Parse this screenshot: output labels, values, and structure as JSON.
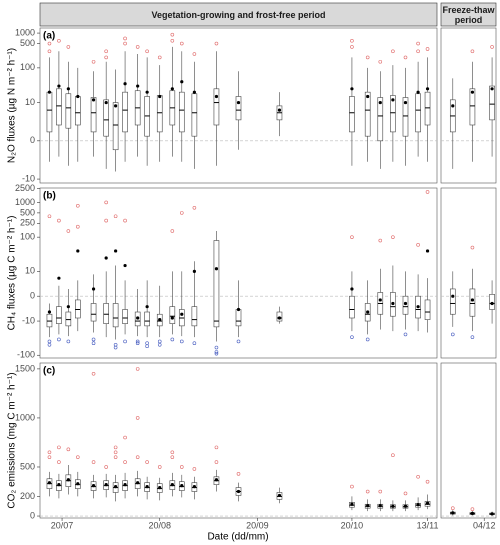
{
  "chart_data": [
    {
      "type": "boxplot",
      "tag": "(a)",
      "facets": [
        "Vegetation-growing and frost-free period",
        "Freeze-thaw period"
      ],
      "xlim": [
        [
          "13/07",
          "16/11"
        ],
        [
          "23/11",
          "07/12"
        ]
      ],
      "ylabel": "N₂O fluxes (µg N m⁻² h⁻¹)",
      "scale": "pseudo-log",
      "ylim": [
        -13,
        1400
      ],
      "yticks": [
        -10,
        0,
        10,
        100,
        500,
        1000
      ],
      "outlier_high_color": "#e06a6a",
      "outlier_low_color": "#4a5fc1",
      "x": [
        "16/07",
        "19/07",
        "22/07",
        "25/07",
        "30/07",
        "03/08",
        "06/08",
        "09/08",
        "13/08",
        "16/08",
        "20/08",
        "24/08",
        "27/08",
        "31/08",
        "07/09",
        "14/09",
        "27/09",
        "20/10",
        "25/10",
        "29/10",
        "02/11",
        "06/11",
        "10/11",
        "13/11",
        "26/11",
        "01/12",
        "06/12"
      ],
      "low": [
        -3,
        -2,
        -4,
        -3,
        -2,
        -5,
        -6,
        -3,
        -2,
        -4,
        -3,
        -2,
        -3,
        -5,
        -4,
        -1,
        0.5,
        -4,
        -3,
        -5,
        -3,
        -4,
        -2,
        -3,
        -5,
        -3,
        -2
      ],
      "q1": [
        1,
        2,
        1.5,
        2,
        1,
        0.5,
        -1,
        1,
        2,
        0.5,
        1,
        2,
        1,
        0.5,
        2,
        3,
        3,
        1,
        0.5,
        0,
        1,
        0.5,
        1,
        2,
        1,
        2,
        3
      ],
      "median": [
        6,
        8,
        7,
        5,
        5,
        3,
        2,
        6,
        7,
        4,
        5,
        7,
        6,
        5,
        10,
        6,
        5,
        5,
        6,
        4,
        5,
        4,
        6,
        7,
        4,
        8,
        9
      ],
      "q3": [
        20,
        25,
        18,
        15,
        14,
        12,
        10,
        20,
        22,
        15,
        16,
        22,
        20,
        18,
        25,
        15,
        8,
        15,
        20,
        14,
        16,
        14,
        18,
        20,
        12,
        25,
        30
      ],
      "high": [
        200,
        300,
        150,
        100,
        80,
        150,
        90,
        300,
        250,
        200,
        120,
        400,
        300,
        150,
        300,
        80,
        20,
        200,
        100,
        80,
        120,
        100,
        150,
        200,
        50,
        150,
        200
      ],
      "mean": [
        20,
        30,
        25,
        15,
        12,
        10,
        8,
        35,
        30,
        20,
        15,
        25,
        40,
        20,
        15,
        10,
        6,
        25,
        15,
        10,
        12,
        10,
        20,
        25,
        8,
        20,
        25
      ],
      "outliers": [
        [
          300,
          500
        ],
        [
          600
        ],
        [
          400
        ],
        [],
        [
          150
        ],
        [
          200,
          300
        ],
        [],
        [
          500,
          700
        ],
        [
          400
        ],
        [
          300
        ],
        [
          200
        ],
        [
          600,
          900
        ],
        [
          500
        ],
        [
          250
        ],
        [
          500
        ],
        [],
        [],
        [
          400,
          600
        ],
        [
          200
        ],
        [
          150
        ],
        [
          300
        ],
        [
          200
        ],
        [
          300,
          500
        ],
        [
          350
        ],
        [],
        [
          300
        ],
        [
          400
        ]
      ]
    },
    {
      "type": "boxplot",
      "tag": "(b)",
      "xlim": [
        [
          "13/07",
          "16/11"
        ],
        [
          "23/11",
          "07/12"
        ]
      ],
      "ylabel": "CH₄ fluxes (µg C m⁻² h⁻¹)",
      "scale": "pseudo-log",
      "ylim": [
        -120,
        2600
      ],
      "yticks": [
        -100,
        -10,
        0,
        10,
        100,
        250,
        500,
        1000,
        2500
      ],
      "outlier_high_color": "#e06a6a",
      "outlier_low_color": "#4a5fc1",
      "x": [
        "16/07",
        "19/07",
        "22/07",
        "25/07",
        "30/07",
        "03/08",
        "06/08",
        "09/08",
        "13/08",
        "16/08",
        "20/08",
        "24/08",
        "27/08",
        "31/08",
        "07/09",
        "14/09",
        "27/09",
        "20/10",
        "25/10",
        "29/10",
        "02/11",
        "06/11",
        "10/11",
        "13/11",
        "26/11",
        "01/12",
        "06/12"
      ],
      "low": [
        -30,
        -25,
        -28,
        -20,
        -22,
        -30,
        -35,
        -25,
        -28,
        -30,
        -30,
        -25,
        -28,
        -30,
        -40,
        -30,
        -12,
        -20,
        -25,
        -18,
        -20,
        -18,
        -20,
        -22,
        -15,
        -20,
        -12
      ],
      "q1": [
        -15,
        -12,
        -14,
        -8,
        -10,
        -12,
        -15,
        -12,
        -14,
        -14,
        -14,
        -12,
        -14,
        -14,
        -15,
        -14,
        -10,
        -8,
        -10,
        -6,
        -7,
        -6,
        -8,
        -9,
        -6,
        -7,
        -4
      ],
      "median": [
        -10,
        -8,
        -9,
        -4,
        -6,
        -6,
        -8,
        -8,
        -10,
        -10,
        -10,
        -7,
        -8,
        -9,
        -10,
        -10,
        -8,
        -4,
        -6,
        -2,
        -3,
        -3,
        -4,
        -5,
        -2,
        -2,
        -2
      ],
      "q3": [
        -6,
        -3,
        -5,
        -1,
        -2,
        -2,
        -2,
        -4,
        -5,
        -5,
        -6,
        -3,
        -4,
        -3,
        80,
        -4,
        -5,
        0,
        -2,
        1,
        1,
        0,
        0,
        -1,
        2,
        2,
        0.5
      ],
      "high": [
        -2,
        3,
        2,
        5,
        8,
        10,
        15,
        5,
        2,
        5,
        3,
        10,
        10,
        20,
        150,
        5,
        -3,
        10,
        5,
        12,
        15,
        10,
        8,
        6,
        10,
        12,
        5
      ],
      "mean": [
        -5,
        6,
        -3,
        40,
        2,
        25,
        40,
        15,
        -8,
        -3,
        -9,
        -8,
        -6,
        10,
        12,
        -4,
        -8,
        2,
        -5,
        -1,
        -2,
        -2,
        -3,
        40,
        0,
        -1,
        -2
      ],
      "outliers": [
        [
          -40,
          -50,
          400
        ],
        [
          300,
          -35
        ],
        [
          -40,
          150
        ],
        [
          200,
          800
        ],
        [
          -35,
          -45
        ],
        [
          300,
          1000
        ],
        [
          -50,
          -60,
          400
        ],
        [
          -40,
          300
        ],
        [
          -40,
          -45
        ],
        [
          -45,
          -55
        ],
        [
          -40,
          -50
        ],
        [
          -35,
          150
        ],
        [
          -40,
          500
        ],
        [
          -45,
          700
        ],
        [
          -60,
          -80,
          -90
        ],
        [
          -40
        ],
        [],
        [
          100,
          -30
        ],
        [
          -35
        ],
        [
          80
        ],
        [
          100
        ],
        [
          -25
        ],
        [
          60
        ],
        [
          2000
        ],
        [
          -25
        ],
        [
          50,
          -30
        ],
        []
      ]
    },
    {
      "type": "boxplot",
      "tag": "(c)",
      "xlim": [
        [
          "13/07",
          "16/11"
        ],
        [
          "23/11",
          "07/12"
        ]
      ],
      "ylabel": "CO₂ emissions (mg C m⁻² h⁻¹)",
      "scale": "linear",
      "ylim": [
        -20,
        1560
      ],
      "yticks": [
        0,
        200,
        500,
        1000,
        1500
      ],
      "outlier_high_color": "#e06a6a",
      "outlier_low_color": "#4a5fc1",
      "xlabel": "Date (dd/mm)",
      "xticks": [
        "20/07",
        "20/08",
        "20/09",
        "20/10",
        "13/11",
        "04/12"
      ],
      "x": [
        "16/07",
        "19/07",
        "22/07",
        "25/07",
        "30/07",
        "03/08",
        "06/08",
        "09/08",
        "13/08",
        "16/08",
        "20/08",
        "24/08",
        "27/08",
        "31/08",
        "07/09",
        "14/09",
        "27/09",
        "20/10",
        "25/10",
        "29/10",
        "02/11",
        "06/11",
        "10/11",
        "13/11",
        "26/11",
        "01/12",
        "06/12"
      ],
      "low": [
        200,
        180,
        220,
        200,
        180,
        190,
        150,
        180,
        200,
        170,
        160,
        200,
        190,
        170,
        250,
        150,
        130,
        60,
        50,
        50,
        50,
        50,
        60,
        70,
        5,
        5,
        5
      ],
      "q1": [
        280,
        260,
        300,
        280,
        260,
        270,
        240,
        260,
        280,
        250,
        240,
        270,
        260,
        250,
        320,
        210,
        170,
        90,
        80,
        80,
        80,
        80,
        90,
        100,
        20,
        15,
        15
      ],
      "median": [
        330,
        310,
        360,
        320,
        300,
        310,
        290,
        310,
        330,
        290,
        280,
        310,
        300,
        290,
        360,
        250,
        200,
        110,
        100,
        100,
        95,
        95,
        110,
        120,
        30,
        25,
        20
      ],
      "q3": [
        380,
        360,
        420,
        370,
        350,
        360,
        340,
        360,
        380,
        340,
        330,
        360,
        350,
        340,
        400,
        290,
        240,
        140,
        120,
        120,
        115,
        115,
        130,
        150,
        40,
        35,
        30
      ],
      "high": [
        450,
        430,
        520,
        450,
        420,
        430,
        420,
        440,
        460,
        400,
        390,
        440,
        420,
        400,
        470,
        340,
        290,
        200,
        170,
        170,
        160,
        160,
        190,
        220,
        60,
        50,
        45
      ],
      "mean": [
        340,
        320,
        370,
        330,
        310,
        320,
        300,
        320,
        340,
        300,
        290,
        320,
        310,
        300,
        370,
        250,
        210,
        120,
        105,
        105,
        100,
        100,
        115,
        130,
        32,
        27,
        22
      ],
      "outliers": [
        [
          600,
          650
        ],
        [
          550,
          700
        ],
        [
          680
        ],
        [
          600
        ],
        [
          1450,
          550
        ],
        [
          500
        ],
        [
          600,
          650,
          700
        ],
        [
          800,
          550
        ],
        [
          1500,
          1000,
          600
        ],
        [
          550
        ],
        [
          500
        ],
        [
          650,
          600
        ],
        [
          500
        ],
        [
          480
        ],
        [
          700,
          550
        ],
        [
          430
        ],
        [],
        [
          300
        ],
        [
          250
        ],
        [
          250
        ],
        [
          620
        ],
        [
          230
        ],
        [
          400
        ],
        [
          350
        ],
        [
          80
        ],
        [
          70
        ],
        []
      ]
    }
  ]
}
